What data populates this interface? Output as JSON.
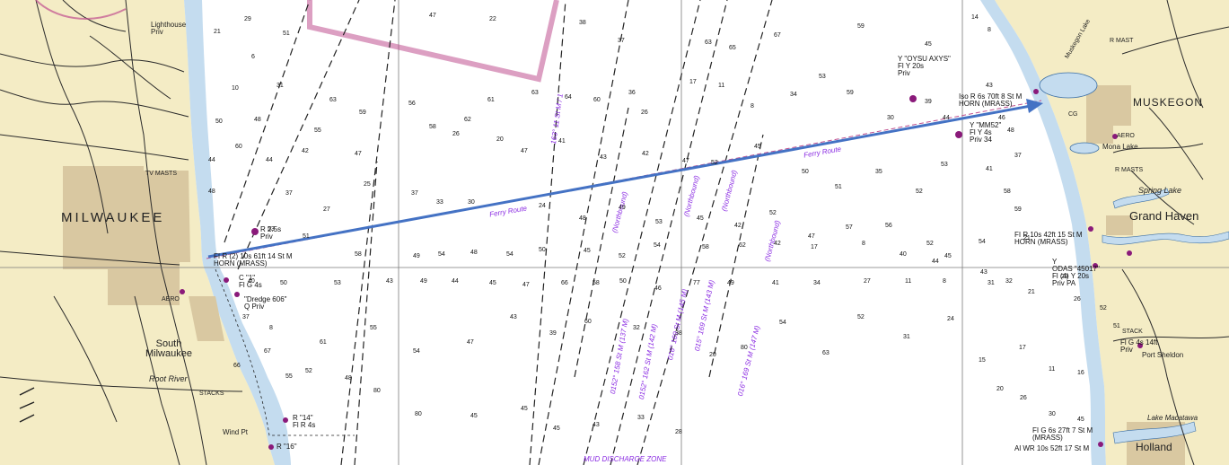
{
  "map": {
    "cities": {
      "milwaukee": "MILWAUKEE",
      "muskegon": "MUSKEGON",
      "grand_haven": "Grand Haven",
      "south_milwaukee": "South\nMilwaukee",
      "holland": "Holland",
      "port_sheldon": "Port Sheldon"
    },
    "features": {
      "mona_lake": "Mona Lake",
      "spring_lake": "Spring Lake",
      "lake_macatawa": "Lake Macatawa",
      "muskegon_lake": "Muskegon Lake",
      "root_river": "Root River",
      "wind_pt": "Wind Pt",
      "lighthouse": "Lighthouse\nPriv",
      "tv_masts": "TV MASTS",
      "stacks": "STACKS",
      "stack": "STACK",
      "aero": "AERO",
      "aero2": "AERO",
      "r_masts": "R MASTS",
      "r_mast": "R MAST",
      "cg": "CG"
    },
    "lights": {
      "milwaukee_light": "FI R (2) 10s 61ft 14 St M\nHORN (MRASS)",
      "muskegon_light": "Iso R 6s 70ft 8 St M\nHORN (MRASS)",
      "grand_haven_light": "FI R 10s 42ft 15 St M\nHORN (MRASS)",
      "holland_light": "FI G 6s 27ft 7 St M\n(MRASS)",
      "holland_light2": "Al WR 10s 52ft 17 St M",
      "dredge": "\"Dredge 606\"\nQ Priv",
      "oyodu": "Y \"OYSU AXYS\"\nFl Y 20s\nPriv",
      "y_mm52": "Y \"MM52\"\nFl Y 4s\nPriv 34",
      "odas": "Y\nODAS \"45017\"\nFl (4) Y 20s\nPriv PA",
      "r14": "R \"14\"\nFl R 4s",
      "r16": "R \"16\"",
      "fl_g_4s": "Fl G 4s 14ft\nPriv",
      "r_2_5s": "R 2.5s\nPriv",
      "c11": "C \"1\"\nFl G 4s"
    },
    "routes": {
      "ferry_route_1": "Ferry Route",
      "ferry_route_2": "Ferry Route",
      "northbound_1": "(Northbound)",
      "northbound_2": "(Northbound)",
      "northbound_3": "(Northbound)",
      "northbound_4": "(Northbound)",
      "course_1": "163° 11 St M / 1",
      "course_2": "016° 169 St M (145 M)",
      "course_3": "015° 169 St M (143 M)",
      "course_4": "016° 169 St M (147 M)",
      "course_5": "0152° 158 St M (137 M)",
      "course_6": "0152° 162 St M (142 M)",
      "dump": "MUD DISCHARGE ZONE"
    },
    "colors": {
      "land": "#f4ecc5",
      "urban": "#d9c8a1",
      "water_shallow": "#c4dcef",
      "water": "#ffffff",
      "arrow": "#4472c4",
      "magenta": "#c0508f",
      "grid": "#7a7a7a"
    },
    "icons": {
      "arrow": "blue-course-arrow",
      "compass": "compass-rose-icon",
      "buoy": "buoy-icon"
    },
    "depths": [
      "29",
      "51",
      "47",
      "22",
      "38",
      "37",
      "63",
      "65",
      "67",
      "59",
      "45",
      "14",
      "8",
      "21",
      "6",
      "10",
      "31",
      "63",
      "59",
      "55",
      "48",
      "50",
      "60",
      "44",
      "42",
      "47",
      "56",
      "58",
      "62",
      "61",
      "63",
      "64",
      "60",
      "36",
      "26",
      "17",
      "11",
      "8",
      "34",
      "53",
      "59",
      "30",
      "39",
      "44",
      "43",
      "46",
      "48",
      "37",
      "58",
      "59",
      "21",
      "26",
      "20",
      "47",
      "41",
      "43",
      "42",
      "47",
      "52",
      "45",
      "50",
      "51",
      "35",
      "52",
      "53",
      "41",
      "44",
      "48",
      "37",
      "27",
      "25",
      "37",
      "33",
      "30",
      "24",
      "48",
      "49",
      "53",
      "45",
      "42",
      "52",
      "47",
      "57",
      "56",
      "52",
      "45",
      "54",
      "53",
      "51",
      "58",
      "49",
      "54",
      "48",
      "54",
      "50",
      "45",
      "52",
      "54",
      "58",
      "62",
      "42",
      "17",
      "8",
      "40",
      "44",
      "43",
      "32",
      "29",
      "26",
      "52",
      "51",
      "40",
      "50",
      "53",
      "43",
      "49",
      "44",
      "45",
      "47",
      "66",
      "58",
      "50",
      "46",
      "77",
      "49",
      "41",
      "34",
      "27",
      "11",
      "8",
      "31",
      "21",
      "37",
      "8",
      "61",
      "55",
      "54",
      "47",
      "43",
      "39",
      "60",
      "32",
      "38",
      "20",
      "80",
      "54",
      "63",
      "52",
      "31",
      "24",
      "15",
      "17",
      "11",
      "16",
      "20",
      "26",
      "30",
      "45",
      "66",
      "67",
      "55",
      "52",
      "48",
      "80",
      "80",
      "45",
      "45",
      "45",
      "43",
      "33",
      "28"
    ]
  }
}
